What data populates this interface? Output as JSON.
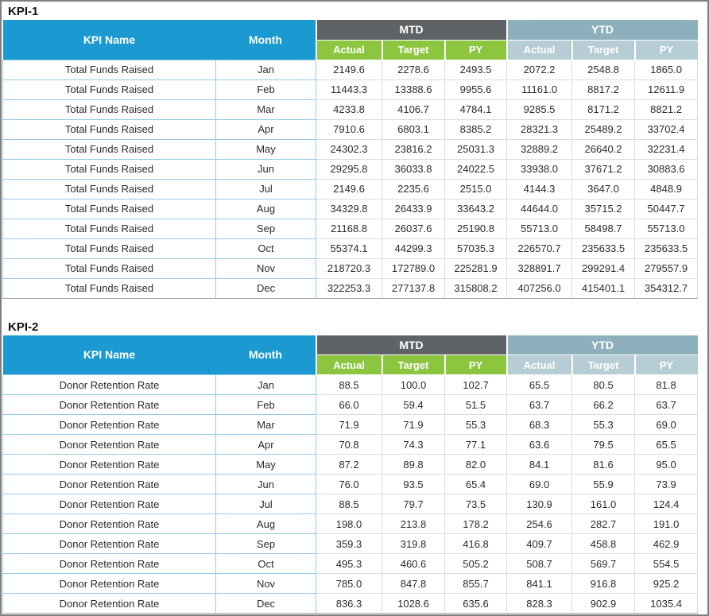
{
  "header": {
    "kpi_name": "KPI Name",
    "month": "Month",
    "groups": [
      {
        "label": "MTD",
        "sub": [
          "Actual",
          "Target",
          "PY"
        ]
      },
      {
        "label": "YTD",
        "sub": [
          "Actual",
          "Target",
          "PY"
        ]
      }
    ]
  },
  "colors": {
    "frame_border": "#7F7F7F",
    "header_cyan": "#1B9AD2",
    "mtd_dark_gray": "#5F6366",
    "mtd_green": "#8CC63F",
    "ytd_slate": "#8EAFBC",
    "ytd_light_slate": "#B7CDD6",
    "grid_blue": "#96CBE4",
    "grid_gray": "#DCDCDC"
  },
  "tables": [
    {
      "title": "KPI-1",
      "kpi_name": "Total Funds Raised",
      "rows": [
        {
          "month": "Jan",
          "values": [
            "2149.6",
            "2278.6",
            "2493.5",
            "2072.2",
            "2548.8",
            "1865.0"
          ]
        },
        {
          "month": "Feb",
          "values": [
            "11443.3",
            "13388.6",
            "9955.6",
            "11161.0",
            "8817.2",
            "12611.9"
          ]
        },
        {
          "month": "Mar",
          "values": [
            "4233.8",
            "4106.7",
            "4784.1",
            "9285.5",
            "8171.2",
            "8821.2"
          ]
        },
        {
          "month": "Apr",
          "values": [
            "7910.6",
            "6803.1",
            "8385.2",
            "28321.3",
            "25489.2",
            "33702.4"
          ]
        },
        {
          "month": "May",
          "values": [
            "24302.3",
            "23816.2",
            "25031.3",
            "32889.2",
            "26640.2",
            "32231.4"
          ]
        },
        {
          "month": "Jun",
          "values": [
            "29295.8",
            "36033.8",
            "24022.5",
            "33938.0",
            "37671.2",
            "30883.6"
          ]
        },
        {
          "month": "Jul",
          "values": [
            "2149.6",
            "2235.6",
            "2515.0",
            "4144.3",
            "3647.0",
            "4848.9"
          ]
        },
        {
          "month": "Aug",
          "values": [
            "34329.8",
            "26433.9",
            "33643.2",
            "44644.0",
            "35715.2",
            "50447.7"
          ]
        },
        {
          "month": "Sep",
          "values": [
            "21168.8",
            "26037.6",
            "25190.8",
            "55713.0",
            "58498.7",
            "55713.0"
          ]
        },
        {
          "month": "Oct",
          "values": [
            "55374.1",
            "44299.3",
            "57035.3",
            "226570.7",
            "235633.5",
            "235633.5"
          ]
        },
        {
          "month": "Nov",
          "values": [
            "218720.3",
            "172789.0",
            "225281.9",
            "328891.7",
            "299291.4",
            "279557.9"
          ]
        },
        {
          "month": "Dec",
          "values": [
            "322253.3",
            "277137.8",
            "315808.2",
            "407256.0",
            "415401.1",
            "354312.7"
          ]
        }
      ]
    },
    {
      "title": "KPI-2",
      "kpi_name": "Donor Retention Rate",
      "rows": [
        {
          "month": "Jan",
          "values": [
            "88.5",
            "100.0",
            "102.7",
            "65.5",
            "80.5",
            "81.8"
          ]
        },
        {
          "month": "Feb",
          "values": [
            "66.0",
            "59.4",
            "51.5",
            "63.7",
            "66.2",
            "63.7"
          ]
        },
        {
          "month": "Mar",
          "values": [
            "71.9",
            "71.9",
            "55.3",
            "68.3",
            "55.3",
            "69.0"
          ]
        },
        {
          "month": "Apr",
          "values": [
            "70.8",
            "74.3",
            "77.1",
            "63.6",
            "79.5",
            "65.5"
          ]
        },
        {
          "month": "May",
          "values": [
            "87.2",
            "89.8",
            "82.0",
            "84.1",
            "81.6",
            "95.0"
          ]
        },
        {
          "month": "Jun",
          "values": [
            "76.0",
            "93.5",
            "65.4",
            "69.0",
            "55.9",
            "73.9"
          ]
        },
        {
          "month": "Jul",
          "values": [
            "88.5",
            "79.7",
            "73.5",
            "130.9",
            "161.0",
            "124.4"
          ]
        },
        {
          "month": "Aug",
          "values": [
            "198.0",
            "213.8",
            "178.2",
            "254.6",
            "282.7",
            "191.0"
          ]
        },
        {
          "month": "Sep",
          "values": [
            "359.3",
            "319.8",
            "416.8",
            "409.7",
            "458.8",
            "462.9"
          ]
        },
        {
          "month": "Oct",
          "values": [
            "495.3",
            "460.6",
            "505.2",
            "508.7",
            "569.7",
            "554.5"
          ]
        },
        {
          "month": "Nov",
          "values": [
            "785.0",
            "847.8",
            "855.7",
            "841.1",
            "916.8",
            "925.2"
          ]
        },
        {
          "month": "Dec",
          "values": [
            "836.3",
            "1028.6",
            "635.6",
            "828.3",
            "902.9",
            "1035.4"
          ]
        }
      ]
    }
  ]
}
